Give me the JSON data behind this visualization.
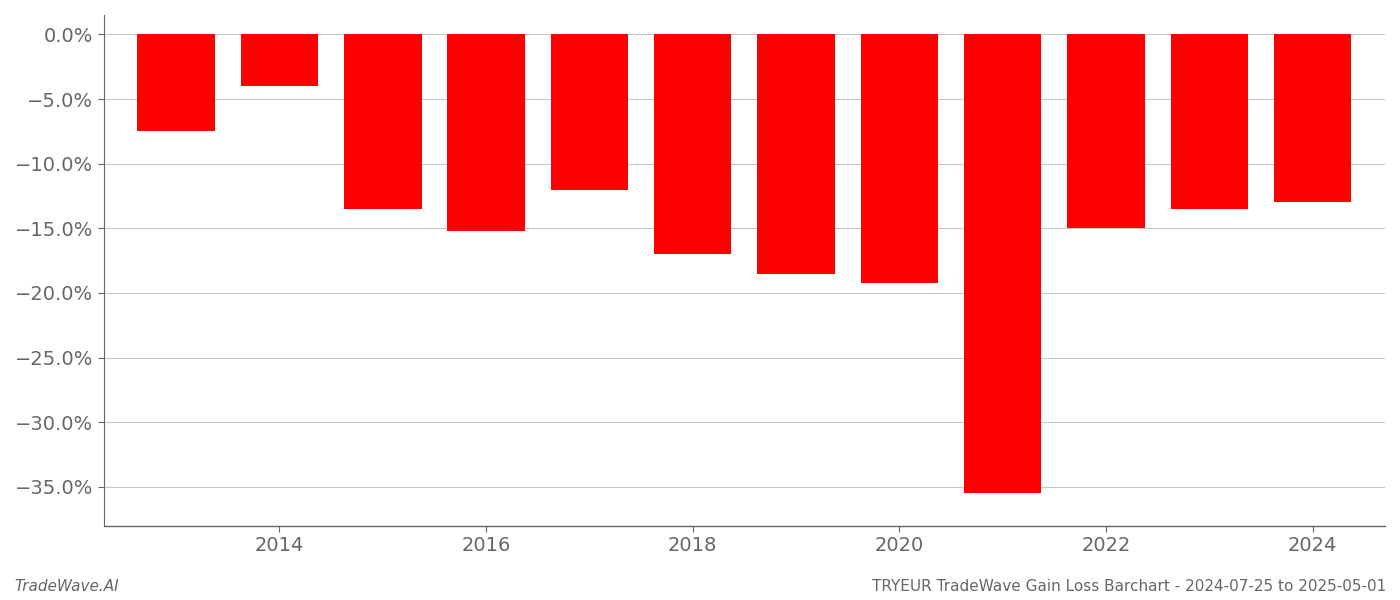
{
  "years": [
    2013,
    2014,
    2015,
    2016,
    2017,
    2018,
    2019,
    2020,
    2021,
    2022,
    2023,
    2024
  ],
  "values": [
    -7.5,
    -4.0,
    -13.5,
    -15.2,
    -12.0,
    -17.0,
    -18.5,
    -19.2,
    -35.5,
    -15.0,
    -13.5,
    -13.0
  ],
  "bar_color": "#ff0000",
  "background_color": "#ffffff",
  "grid_color": "#bbbbbb",
  "axis_color": "#666666",
  "ylim_min": -38,
  "ylim_max": 1.5,
  "yticks": [
    0,
    -5,
    -10,
    -15,
    -20,
    -25,
    -30,
    -35
  ],
  "bar_width": 0.75,
  "footer_left": "TradeWave.AI",
  "footer_right": "TRYEUR TradeWave Gain Loss Barchart - 2024-07-25 to 2025-05-01",
  "footer_fontsize": 11,
  "tick_fontsize": 14,
  "grid_alpha": 1.0,
  "grid_linewidth": 0.6
}
